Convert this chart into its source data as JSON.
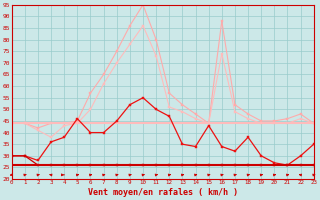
{
  "background_color": "#cce8e8",
  "grid_color": "#99cccc",
  "line_color_dark": "#cc0000",
  "xlabel": "Vent moyen/en rafales ( km/h )",
  "ylim": [
    20,
    95
  ],
  "xlim": [
    0,
    23
  ],
  "y_ticks": [
    20,
    25,
    30,
    35,
    40,
    45,
    50,
    55,
    60,
    65,
    70,
    75,
    80,
    85,
    90,
    95
  ],
  "x_ticks": [
    0,
    1,
    2,
    3,
    4,
    5,
    6,
    7,
    8,
    9,
    10,
    11,
    12,
    13,
    14,
    15,
    16,
    17,
    18,
    19,
    20,
    21,
    22,
    23
  ],
  "series": [
    {
      "name": "rafales_light1",
      "color": "#ffaaaa",
      "lw": 0.8,
      "marker": "s",
      "markersize": 1.8,
      "values": [
        44,
        44,
        42,
        44,
        44,
        45,
        57,
        65,
        75,
        86,
        95,
        80,
        57,
        52,
        48,
        44,
        88,
        52,
        48,
        45,
        45,
        46,
        48,
        44
      ]
    },
    {
      "name": "vent_light1",
      "color": "#ffbbbb",
      "lw": 0.8,
      "marker": "s",
      "markersize": 1.8,
      "values": [
        44,
        44,
        41,
        38,
        43,
        44,
        50,
        61,
        70,
        78,
        86,
        73,
        51,
        49,
        46,
        44,
        74,
        49,
        46,
        44,
        44,
        44,
        46,
        44
      ]
    },
    {
      "name": "avg_line",
      "color": "#ffbbbb",
      "lw": 1.5,
      "marker": null,
      "markersize": 0,
      "values": [
        44,
        44,
        44,
        44,
        44,
        44,
        44,
        44,
        44,
        44,
        44,
        44,
        44,
        44,
        44,
        44,
        44,
        44,
        44,
        44,
        44,
        44,
        44,
        44
      ]
    },
    {
      "name": "rafales_dark",
      "color": "#ee1111",
      "lw": 0.9,
      "marker": "s",
      "markersize": 1.8,
      "values": [
        30,
        30,
        28,
        36,
        38,
        46,
        40,
        40,
        45,
        52,
        55,
        50,
        47,
        35,
        34,
        43,
        34,
        32,
        38,
        30,
        27,
        26,
        30,
        35
      ]
    },
    {
      "name": "vent_dark_flat",
      "color": "#cc0000",
      "lw": 1.5,
      "marker": null,
      "markersize": 0,
      "values": [
        26,
        26,
        26,
        26,
        26,
        26,
        26,
        26,
        26,
        26,
        26,
        26,
        26,
        26,
        26,
        26,
        26,
        26,
        26,
        26,
        26,
        26,
        26,
        26
      ]
    },
    {
      "name": "vent_dark",
      "color": "#cc0000",
      "lw": 0.9,
      "marker": "s",
      "markersize": 1.8,
      "values": [
        30,
        30,
        26,
        26,
        26,
        26,
        26,
        26,
        26,
        26,
        26,
        26,
        26,
        26,
        26,
        26,
        26,
        26,
        26,
        26,
        26,
        26,
        26,
        26
      ]
    }
  ]
}
